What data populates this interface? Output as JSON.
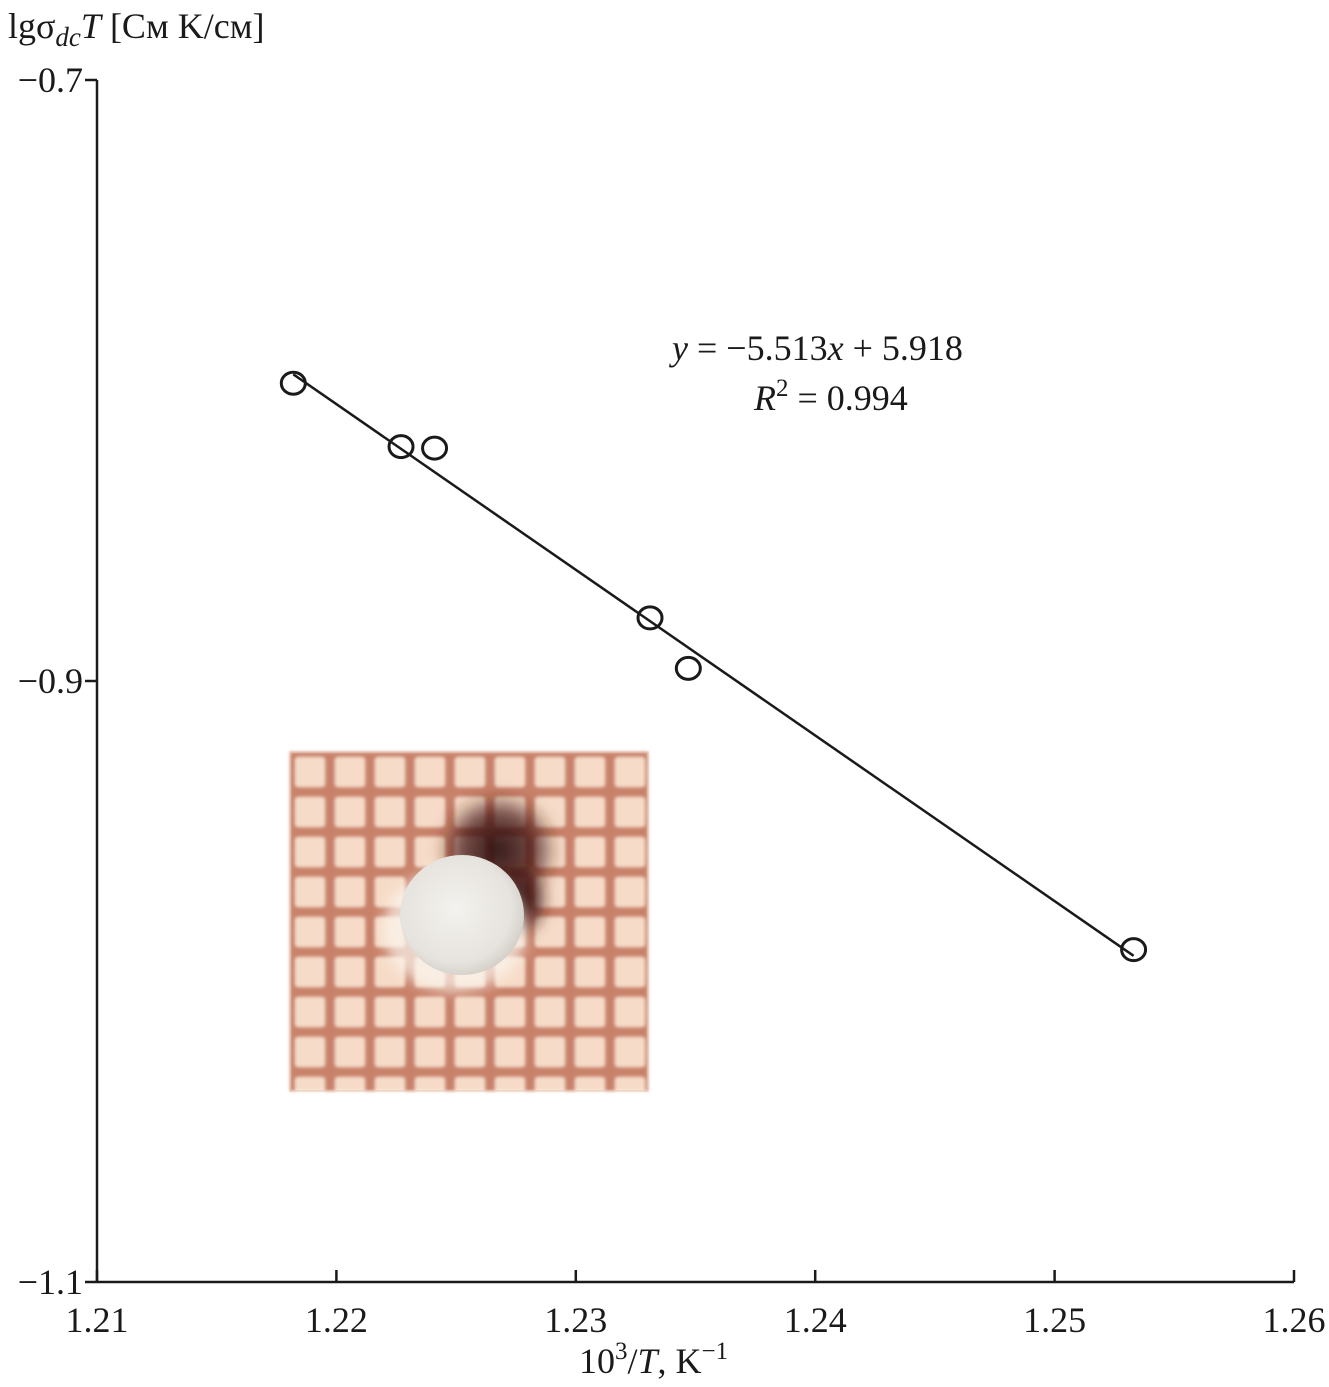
{
  "chart_data": {
    "type": "scatter",
    "title": "",
    "ylabel": {
      "prefix": "lgσ",
      "subscript": "dc",
      "italic": "T",
      "units": " [См K/см]"
    },
    "xlabel": {
      "base": "10",
      "sup": "3",
      "slash": "/",
      "italic": "T",
      "units": ", K",
      "unit_sup": "−1"
    },
    "xlim": [
      1.21,
      1.26
    ],
    "ylim": [
      -1.1,
      -0.7
    ],
    "x_ticks": [
      1.21,
      1.22,
      1.23,
      1.24,
      1.25,
      1.26
    ],
    "x_tick_labels": [
      "1.21",
      "1.22",
      "1.23",
      "1.24",
      "1.25",
      "1.26"
    ],
    "y_ticks": [
      -0.7,
      -0.9,
      -1.1
    ],
    "y_tick_labels": [
      "−0.7",
      "−0.9",
      "−1.1"
    ],
    "series": [
      {
        "marker": "open-circle",
        "x": [
          1.2182,
          1.2227,
          1.2241,
          1.2331,
          1.2347,
          1.2533
        ],
        "y": [
          -0.8009,
          -0.822,
          -0.8225,
          -0.879,
          -0.8958,
          -0.9894
        ]
      }
    ],
    "fit": {
      "slope": -5.513,
      "intercept": 5.918,
      "x_range": [
        1.2182,
        1.2533
      ],
      "equation": {
        "y": "y",
        "rhs": " = −5.513",
        "x": "x",
        "rest": " + 5.918"
      },
      "r2": {
        "r": "R",
        "sup": "2",
        "value": " = 0.994"
      }
    },
    "grid": false,
    "legend": "none"
  }
}
